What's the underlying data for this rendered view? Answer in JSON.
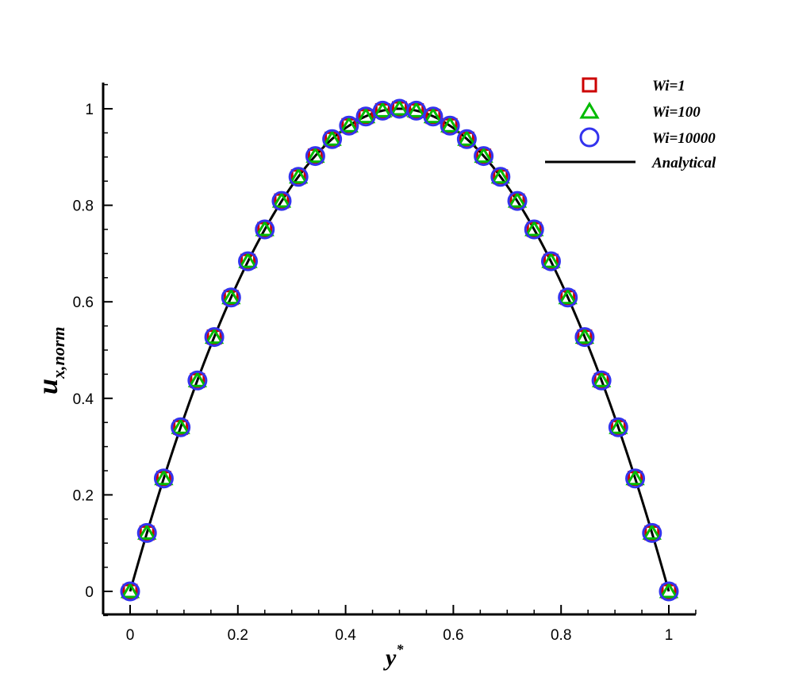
{
  "chart_data": {
    "type": "scatter",
    "xlabel": "y",
    "xlabel_superscript": "*",
    "ylabel": "u",
    "ylabel_subscript": "x,norm",
    "xlim": [
      -0.05,
      1.05
    ],
    "ylim": [
      -0.05,
      1.05
    ],
    "x_ticks": [
      "0",
      "0.2",
      "0.4",
      "0.6",
      "0.8",
      "1"
    ],
    "y_ticks": [
      "0",
      "0.2",
      "0.4",
      "0.6",
      "0.8",
      "1"
    ],
    "x_tick_values": [
      0,
      0.2,
      0.4,
      0.6,
      0.8,
      1
    ],
    "y_tick_values": [
      0,
      0.2,
      0.4,
      0.6,
      0.8,
      1
    ],
    "grid": false,
    "legend_position": "top-right",
    "x": [
      0,
      0.03125,
      0.0625,
      0.09375,
      0.125,
      0.15625,
      0.1875,
      0.21875,
      0.25,
      0.28125,
      0.3125,
      0.34375,
      0.375,
      0.40625,
      0.4375,
      0.46875,
      0.5,
      0.53125,
      0.5625,
      0.59375,
      0.625,
      0.65625,
      0.6875,
      0.71875,
      0.75,
      0.78125,
      0.8125,
      0.84375,
      0.875,
      0.90625,
      0.9375,
      0.96875,
      1
    ],
    "series": [
      {
        "name": "Wi=1",
        "marker": "square",
        "color": "#cc0000",
        "values": [
          0,
          0.121,
          0.234,
          0.34,
          0.437,
          0.527,
          0.609,
          0.684,
          0.75,
          0.809,
          0.859,
          0.902,
          0.937,
          0.965,
          0.984,
          0.996,
          1,
          0.996,
          0.984,
          0.965,
          0.937,
          0.902,
          0.859,
          0.809,
          0.75,
          0.684,
          0.609,
          0.527,
          0.437,
          0.34,
          0.234,
          0.121,
          0
        ]
      },
      {
        "name": "Wi=100",
        "marker": "triangle",
        "color": "#00bb00",
        "values": [
          0,
          0.121,
          0.234,
          0.34,
          0.437,
          0.527,
          0.609,
          0.684,
          0.75,
          0.809,
          0.859,
          0.902,
          0.937,
          0.965,
          0.984,
          0.996,
          1,
          0.996,
          0.984,
          0.965,
          0.937,
          0.902,
          0.859,
          0.809,
          0.75,
          0.684,
          0.609,
          0.527,
          0.437,
          0.34,
          0.234,
          0.121,
          0
        ]
      },
      {
        "name": "Wi=10000",
        "marker": "circle",
        "color": "#3333ee",
        "values": [
          0,
          0.121,
          0.234,
          0.34,
          0.437,
          0.527,
          0.609,
          0.684,
          0.75,
          0.809,
          0.859,
          0.902,
          0.937,
          0.965,
          0.984,
          0.996,
          1,
          0.996,
          0.984,
          0.965,
          0.937,
          0.902,
          0.859,
          0.809,
          0.75,
          0.684,
          0.609,
          0.527,
          0.437,
          0.34,
          0.234,
          0.121,
          0
        ]
      },
      {
        "name": "Analytical",
        "type": "line",
        "color": "#000000",
        "formula": "4*y*(1-y)"
      }
    ]
  }
}
